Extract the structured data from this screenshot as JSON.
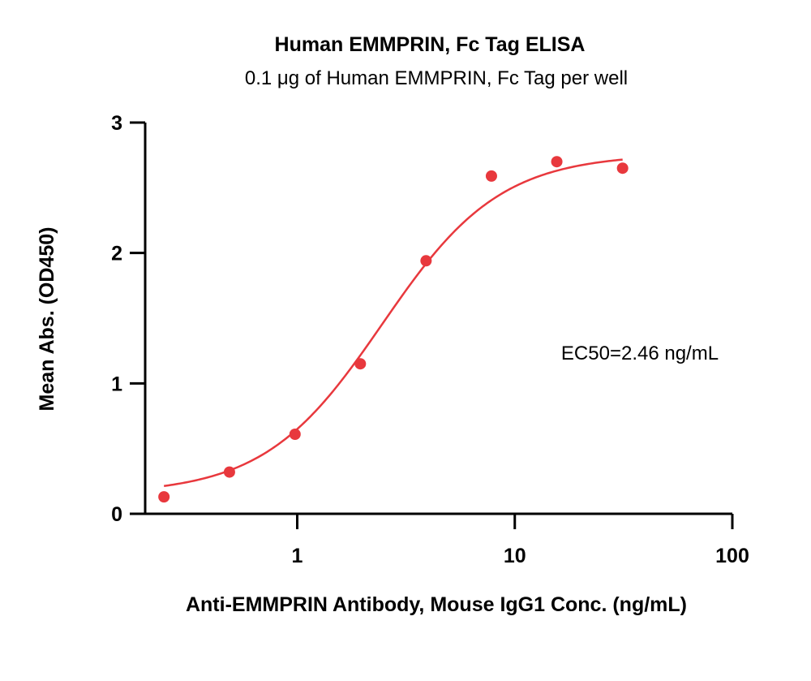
{
  "chart_data": {
    "type": "scatter",
    "title": "Human EMMPRIN, Fc Tag ELISA",
    "subtitle": "0.1 μg of Human EMMPRIN, Fc Tag per well",
    "xlabel": "Anti-EMMPRIN Antibody, Mouse IgG1 Conc. (ng/mL)",
    "ylabel": "Mean Abs. (OD450)",
    "x_scale": "log",
    "xlim": [
      0.2,
      100
    ],
    "ylim": [
      0,
      3
    ],
    "x_ticks": [
      1,
      10,
      100
    ],
    "x_tick_labels": [
      "1",
      "10",
      "100"
    ],
    "y_ticks": [
      0,
      1,
      2,
      3
    ],
    "y_tick_labels": [
      "0",
      "1",
      "2",
      "3"
    ],
    "grid": false,
    "annotation": "EC50=2.46 ng/mL",
    "series": [
      {
        "type": "scatter",
        "color": "#e8383d",
        "x": [
          0.244,
          0.488,
          0.977,
          1.95,
          3.91,
          7.81,
          15.6,
          31.3
        ],
        "y": [
          0.13,
          0.32,
          0.61,
          1.15,
          1.94,
          2.59,
          2.7,
          2.65
        ]
      },
      {
        "type": "line",
        "color": "#e8383d",
        "fit": "4PL",
        "params": {
          "bottom": 0.15,
          "top": 2.76,
          "ec50": 2.46,
          "hill": 1.6
        },
        "x_range": [
          0.244,
          31.3
        ]
      }
    ]
  }
}
